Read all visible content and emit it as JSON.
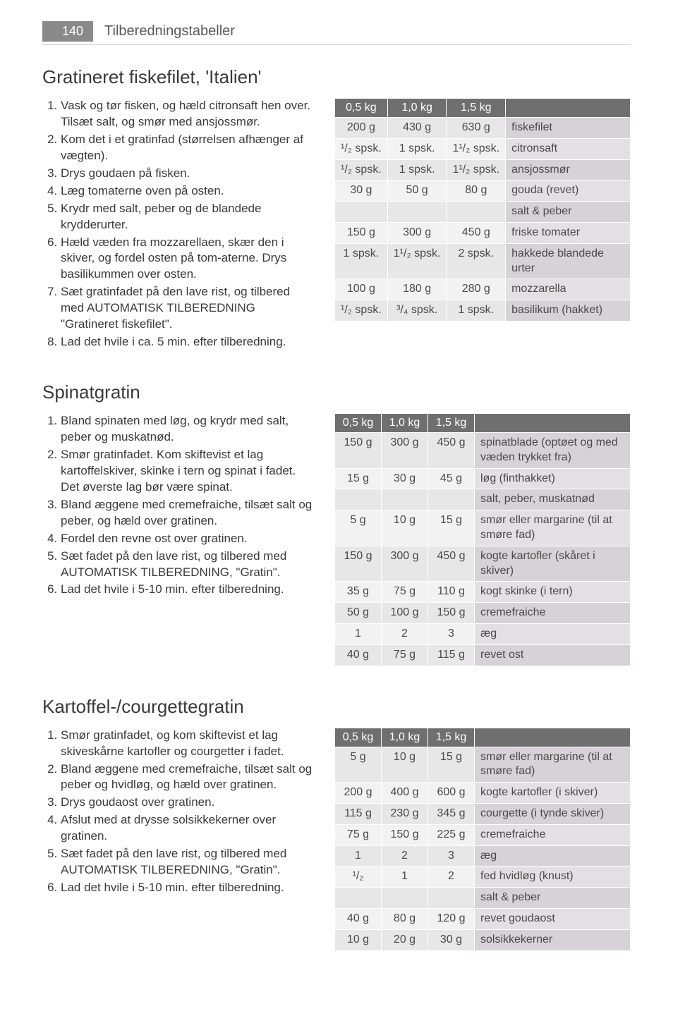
{
  "page": {
    "number": "140",
    "section": "Tilberedningstabeller"
  },
  "recipes": [
    {
      "title": "Gratineret fiskefilet, 'Italien'",
      "steps": [
        "Vask og tør fisken, og hæld citronsaft hen over. Tilsæt salt, og smør med ansjossmør.",
        "Kom det i et gratinfad (størrelsen afhænger af vægten).",
        "Drys goudaen på fisken.",
        "Læg tomaterne oven på osten.",
        "Krydr med salt, peber og de blandede krydderurter.",
        "Hæld væden fra mozzarellaen, skær den i skiver, og fordel osten på tom-aterne. Drys basilikummen over osten.",
        "Sæt gratinfadet på den lave rist, og tilbered med AUTOMATISK TILBEREDNING \"Gratineret fiskefilet\".",
        "Lad det hvile i ca. 5 min. efter tilberedning."
      ],
      "headers": [
        "0,5 kg",
        "1,0 kg",
        "1,5 kg"
      ],
      "rows": [
        {
          "q": [
            "200 g",
            "430 g",
            "630 g"
          ],
          "name": "fiskefilet"
        },
        {
          "q": [
            "¹/₂ spsk.",
            "1 spsk.",
            "1¹/₂ spsk."
          ],
          "name": "citronsaft"
        },
        {
          "q": [
            "¹/₂ spsk.",
            "1 spsk.",
            "1¹/₂ spsk."
          ],
          "name": "ansjossmør"
        },
        {
          "q": [
            "30 g",
            "50 g",
            "80 g"
          ],
          "name": "gouda (revet)"
        },
        {
          "q": [
            "",
            "",
            ""
          ],
          "name": "salt & peber"
        },
        {
          "q": [
            "150 g",
            "300 g",
            "450 g"
          ],
          "name": "friske tomater"
        },
        {
          "q": [
            "1 spsk.",
            "1¹/₂ spsk.",
            "2 spsk."
          ],
          "name": "hakkede blandede urter"
        },
        {
          "q": [
            "100 g",
            "180 g",
            "280 g"
          ],
          "name": "mozzarella"
        },
        {
          "q": [
            "¹/₂ spsk.",
            "³/₄ spsk.",
            "1 spsk."
          ],
          "name": "basilikum (hakket)"
        }
      ]
    },
    {
      "title": "Spinatgratin",
      "steps": [
        "Bland spinaten med løg, og krydr med salt, peber og muskatnød.",
        "Smør gratinfadet. Kom skiftevist et lag kartoffelskiver, skinke i tern og spinat i fadet. Det øverste lag bør være spinat.",
        "Bland æggene med cremefraiche, tilsæt salt og peber, og hæld over gratinen.",
        "Fordel den revne ost over gratinen.",
        "Sæt fadet på den lave rist, og tilbered med AUTOMATISK TILBEREDNING, \"Gratin\".",
        "Lad det hvile i 5-10 min. efter tilberedning."
      ],
      "headers": [
        "0,5 kg",
        "1,0 kg",
        "1,5 kg"
      ],
      "rows": [
        {
          "q": [
            "150 g",
            "300 g",
            "450 g"
          ],
          "name": "spinatblade (optøet og med væden trykket fra)"
        },
        {
          "q": [
            "15 g",
            "30 g",
            "45 g"
          ],
          "name": "løg (finthakket)"
        },
        {
          "q": [
            "",
            "",
            ""
          ],
          "name": "salt, peber, muskatnød"
        },
        {
          "q": [
            "5 g",
            "10 g",
            "15 g"
          ],
          "name": "smør eller margarine (til at smøre fad)"
        },
        {
          "q": [
            "150 g",
            "300 g",
            "450 g"
          ],
          "name": "kogte kartofler (skåret i skiver)"
        },
        {
          "q": [
            "35 g",
            "75 g",
            "110 g"
          ],
          "name": "kogt skinke (i tern)"
        },
        {
          "q": [
            "50 g",
            "100 g",
            "150 g"
          ],
          "name": "cremefraiche"
        },
        {
          "q": [
            "1",
            "2",
            "3"
          ],
          "name": "æg"
        },
        {
          "q": [
            "40 g",
            "75 g",
            "115 g"
          ],
          "name": "revet ost"
        }
      ]
    },
    {
      "title": "Kartoffel-/courgettegratin",
      "steps": [
        "Smør gratinfadet, og kom skiftevist et lag skiveskårne kartofler og courgetter i fadet.",
        "Bland æggene med cremefraiche, tilsæt salt og peber og hvidløg, og hæld over gratinen.",
        "Drys goudaost over gratinen.",
        "Afslut med at drysse solsikkekerner over gratinen.",
        "Sæt fadet på den lave rist, og tilbered med AUTOMATISK TILBEREDNING, \"Gratin\".",
        "Lad det hvile i 5-10 min. efter tilberedning."
      ],
      "headers": [
        "0,5 kg",
        "1,0 kg",
        "1,5 kg"
      ],
      "rows": [
        {
          "q": [
            "5 g",
            "10 g",
            "15 g"
          ],
          "name": "smør eller margarine (til at smøre fad)"
        },
        {
          "q": [
            "200 g",
            "400 g",
            "600 g"
          ],
          "name": "kogte kartofler (i skiver)"
        },
        {
          "q": [
            "115 g",
            "230 g",
            "345 g"
          ],
          "name": "courgette (i tynde skiver)"
        },
        {
          "q": [
            "75 g",
            "150 g",
            "225 g"
          ],
          "name": "cremefraiche"
        },
        {
          "q": [
            "1",
            "2",
            "3"
          ],
          "name": "æg"
        },
        {
          "q": [
            "¹/₂",
            "1",
            "2"
          ],
          "name": "fed hvidløg (knust)"
        },
        {
          "q": [
            "",
            "",
            ""
          ],
          "name": "salt & peber"
        },
        {
          "q": [
            "40 g",
            "80 g",
            "120 g"
          ],
          "name": "revet goudaost"
        },
        {
          "q": [
            "10 g",
            "20 g",
            "30 g"
          ],
          "name": "solsikkekerner"
        }
      ]
    }
  ]
}
